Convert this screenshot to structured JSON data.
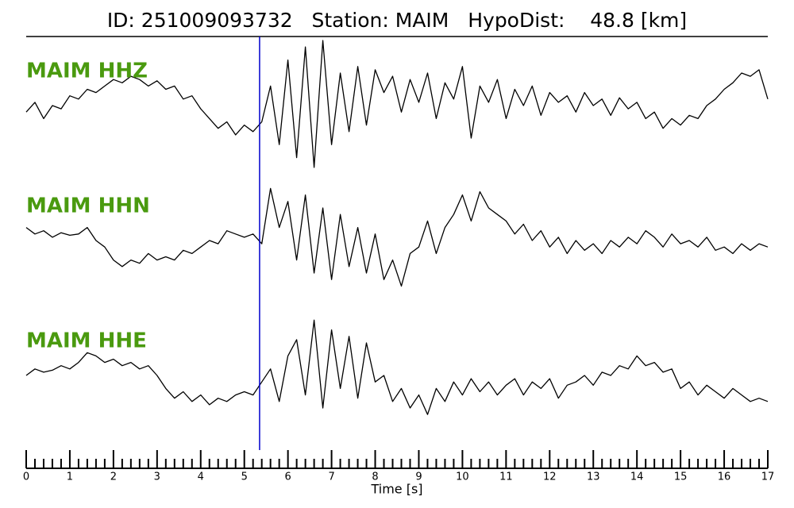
{
  "chart_data": {
    "type": "line",
    "title": "ID: 251009093732   Station: MAIM   HypoDist:    48.8 [km]",
    "xlabel": "Time [s]",
    "xlim": [
      0,
      17
    ],
    "ylim": [
      -1,
      1
    ],
    "xticks": [
      0,
      1,
      2,
      3,
      4,
      5,
      6,
      7,
      8,
      9,
      10,
      11,
      12,
      13,
      14,
      15,
      16,
      17
    ],
    "xticks_minor": [
      0.2,
      0.4,
      0.6,
      0.8,
      1.2,
      1.4,
      1.6,
      1.8,
      2.2,
      2.4,
      2.6,
      2.8,
      3.2,
      3.4,
      3.6,
      3.8,
      4.2,
      4.4,
      4.6,
      4.8,
      5.2,
      5.4,
      5.6,
      5.8,
      6.2,
      6.4,
      6.6,
      6.8,
      7.2,
      7.4,
      7.6,
      7.8,
      8.2,
      8.4,
      8.6,
      8.8,
      9.2,
      9.4,
      9.6,
      9.8,
      10.2,
      10.4,
      10.6,
      10.8,
      11.2,
      11.4,
      11.6,
      11.8,
      12.2,
      12.4,
      12.6,
      12.8,
      13.2,
      13.4,
      13.6,
      13.8,
      14.2,
      14.4,
      14.6,
      14.8,
      15.2,
      15.4,
      15.6,
      15.8,
      16.2,
      16.4,
      16.6,
      16.8
    ],
    "marker_line": {
      "x": 5.35,
      "color": "#0000cc"
    },
    "label_color": "#4a9a0f",
    "x": [
      0,
      0.2,
      0.4,
      0.6,
      0.8,
      1,
      1.2,
      1.4,
      1.6,
      1.8,
      2,
      2.2,
      2.4,
      2.6,
      2.8,
      3,
      3.2,
      3.4,
      3.6,
      3.8,
      4,
      4.2,
      4.4,
      4.6,
      4.8,
      5,
      5.2,
      5.4,
      5.6,
      5.8,
      6,
      6.2,
      6.4,
      6.6,
      6.8,
      7,
      7.2,
      7.4,
      7.6,
      7.8,
      8,
      8.2,
      8.4,
      8.6,
      8.8,
      9,
      9.2,
      9.4,
      9.6,
      9.8,
      10,
      10.2,
      10.4,
      10.6,
      10.8,
      11,
      11.2,
      11.4,
      11.6,
      11.8,
      12,
      12.2,
      12.4,
      12.6,
      12.8,
      13,
      13.2,
      13.4,
      13.6,
      13.8,
      14,
      14.2,
      14.4,
      14.6,
      14.8,
      15,
      15.2,
      15.4,
      15.6,
      15.8,
      16,
      16.2,
      16.4,
      16.6,
      16.8,
      17
    ],
    "series": [
      {
        "name": "MAIM HHZ",
        "color": "#000000",
        "values": [
          -0.1,
          0.05,
          -0.2,
          0.0,
          -0.05,
          0.15,
          0.1,
          0.25,
          0.2,
          0.3,
          0.4,
          0.35,
          0.45,
          0.4,
          0.3,
          0.38,
          0.25,
          0.3,
          0.1,
          0.15,
          -0.05,
          -0.2,
          -0.35,
          -0.25,
          -0.45,
          -0.3,
          -0.4,
          -0.25,
          0.3,
          -0.6,
          0.7,
          -0.8,
          0.9,
          -0.95,
          1.0,
          -0.6,
          0.5,
          -0.4,
          0.6,
          -0.3,
          0.55,
          0.2,
          0.45,
          -0.1,
          0.4,
          0.05,
          0.5,
          -0.2,
          0.35,
          0.1,
          0.6,
          -0.5,
          0.3,
          0.05,
          0.4,
          -0.2,
          0.25,
          0.0,
          0.3,
          -0.15,
          0.2,
          0.05,
          0.15,
          -0.1,
          0.2,
          0.0,
          0.1,
          -0.15,
          0.12,
          -0.05,
          0.05,
          -0.2,
          -0.1,
          -0.35,
          -0.2,
          -0.3,
          -0.15,
          -0.2,
          0.0,
          0.1,
          0.25,
          0.35,
          0.5,
          0.45,
          0.55,
          0.1
        ]
      },
      {
        "name": "MAIM HHN",
        "color": "#000000",
        "values": [
          0.2,
          0.1,
          0.15,
          0.05,
          0.12,
          0.08,
          0.1,
          0.2,
          0.0,
          -0.1,
          -0.3,
          -0.4,
          -0.3,
          -0.35,
          -0.2,
          -0.3,
          -0.25,
          -0.3,
          -0.15,
          -0.2,
          -0.1,
          0.0,
          -0.05,
          0.15,
          0.1,
          0.05,
          0.1,
          -0.05,
          0.8,
          0.2,
          0.6,
          -0.3,
          0.7,
          -0.5,
          0.5,
          -0.6,
          0.4,
          -0.4,
          0.2,
          -0.5,
          0.1,
          -0.6,
          -0.3,
          -0.7,
          -0.2,
          -0.1,
          0.3,
          -0.2,
          0.2,
          0.4,
          0.7,
          0.3,
          0.75,
          0.5,
          0.4,
          0.3,
          0.1,
          0.25,
          0.0,
          0.15,
          -0.1,
          0.05,
          -0.2,
          0.0,
          -0.15,
          -0.05,
          -0.2,
          0.0,
          -0.1,
          0.05,
          -0.05,
          0.15,
          0.05,
          -0.1,
          0.1,
          -0.05,
          0.0,
          -0.1,
          0.05,
          -0.15,
          -0.1,
          -0.2,
          -0.05,
          -0.15,
          -0.05,
          -0.1
        ]
      },
      {
        "name": "MAIM HHE",
        "color": "#000000",
        "values": [
          0.0,
          0.1,
          0.05,
          0.08,
          0.15,
          0.1,
          0.2,
          0.35,
          0.3,
          0.2,
          0.25,
          0.15,
          0.2,
          0.1,
          0.15,
          0.0,
          -0.2,
          -0.35,
          -0.25,
          -0.4,
          -0.3,
          -0.45,
          -0.35,
          -0.4,
          -0.3,
          -0.25,
          -0.3,
          -0.1,
          0.1,
          -0.4,
          0.3,
          0.55,
          -0.3,
          0.85,
          -0.5,
          0.7,
          -0.2,
          0.6,
          -0.35,
          0.5,
          -0.1,
          0.0,
          -0.4,
          -0.2,
          -0.5,
          -0.3,
          -0.6,
          -0.2,
          -0.4,
          -0.1,
          -0.3,
          -0.05,
          -0.25,
          -0.1,
          -0.3,
          -0.15,
          -0.05,
          -0.3,
          -0.1,
          -0.2,
          -0.05,
          -0.35,
          -0.15,
          -0.1,
          0.0,
          -0.15,
          0.05,
          0.0,
          0.15,
          0.1,
          0.3,
          0.15,
          0.2,
          0.05,
          0.1,
          -0.2,
          -0.1,
          -0.3,
          -0.15,
          -0.25,
          -0.35,
          -0.2,
          -0.3,
          -0.4,
          -0.35,
          -0.4
        ]
      }
    ]
  }
}
